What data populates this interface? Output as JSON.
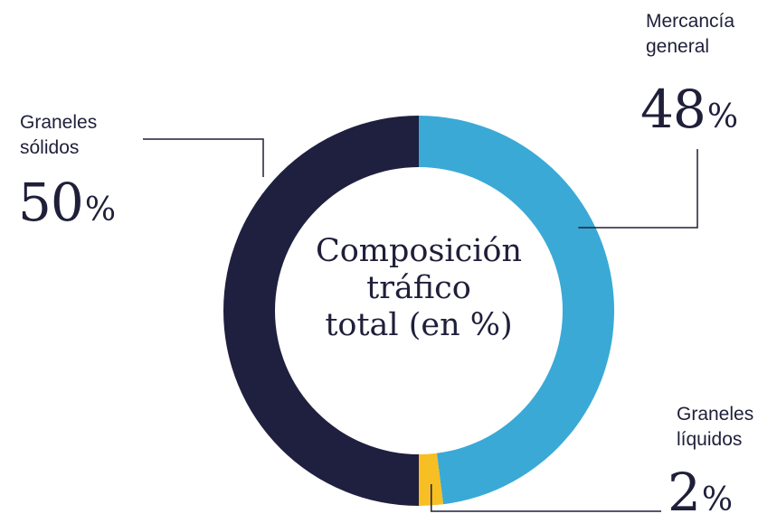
{
  "chart_data": {
    "type": "pie",
    "title_lines": [
      "Composición",
      "tráfico",
      "total (en %)"
    ],
    "categories": [
      "Mercancía general",
      "Graneles líquidos",
      "Graneles sólidos"
    ],
    "values": [
      48,
      2,
      50
    ],
    "unit": "%",
    "series": [
      {
        "name_lines": [
          "Mercancía",
          "general"
        ],
        "value": 48,
        "value_text": "48",
        "color": "#3aa9d6"
      },
      {
        "name_lines": [
          "Graneles",
          "líquidos"
        ],
        "value": 2,
        "value_text": "2",
        "color": "#f7bf23"
      },
      {
        "name_lines": [
          "Graneles",
          "sólidos"
        ],
        "value": 50,
        "value_text": "50",
        "color": "#1f1f3f"
      }
    ],
    "line_color": "#1f1f3a"
  }
}
